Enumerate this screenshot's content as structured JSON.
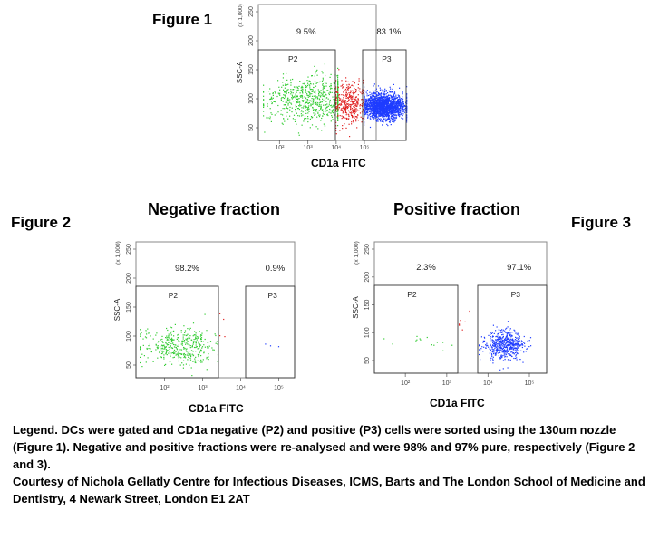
{
  "figures": {
    "fig1_label": "Figure 1",
    "fig2_label": "Figure 2",
    "fig3_label": "Figure 3",
    "negative_title": "Negative fraction",
    "positive_title": "Positive fraction"
  },
  "legend": {
    "line1": "Legend. DCs were gated and CD1a negative (P2) and positive (P3) cells were sorted using the 130um nozzle (Figure 1). Negative and positive fractions were re-analysed and were 98% and 97% pure, respectively (Figure 2 and 3).",
    "line2": "Courtesy of Nichola Gellatly Centre for Infectious Diseases, ICMS, Barts and The London School of Medicine and Dentistry, 4 Newark Street, London E1 2AT"
  },
  "colors": {
    "p2": "#33cc33",
    "ungated": "#e02020",
    "p3": "#1e3cff"
  },
  "chart_data": [
    {
      "type": "scatter",
      "name": "Figure 1",
      "xlabel": "CD1a FITC",
      "ylabel": "SSC-A",
      "y_multiplier_label": "(x 1,000)",
      "x_scale": "log",
      "x_ticks": [
        "10²",
        "10³",
        "10⁴",
        "10⁵"
      ],
      "y_ticks": [
        "250",
        "200",
        "150",
        "100",
        "50"
      ],
      "gates": [
        {
          "name": "P2",
          "percent": "9.5%"
        },
        {
          "name": "P3",
          "percent": "83.1%"
        }
      ],
      "populations": {
        "p2": 700,
        "ungated": 360,
        "p3": 1900
      }
    },
    {
      "type": "scatter",
      "name": "Figure 2",
      "xlabel": "CD1a FITC",
      "ylabel": "SSC-A",
      "y_multiplier_label": "(x 1,000)",
      "x_scale": "log",
      "x_ticks": [
        "10²",
        "10³",
        "10⁴",
        "10⁵"
      ],
      "y_ticks": [
        "250",
        "200",
        "150",
        "100",
        "50"
      ],
      "gates": [
        {
          "name": "P2",
          "percent": "98.2%"
        },
        {
          "name": "P3",
          "percent": "0.9%"
        }
      ],
      "populations": {
        "p2": 420,
        "ungated": 4,
        "p3": 3
      }
    },
    {
      "type": "scatter",
      "name": "Figure 3",
      "xlabel": "CD1a FITC",
      "ylabel": "SSC-A",
      "y_multiplier_label": "(x 1,000)",
      "x_scale": "log",
      "x_ticks": [
        "10²",
        "10³",
        "10⁴",
        "10⁵"
      ],
      "y_ticks": [
        "250",
        "200",
        "150",
        "100",
        "50"
      ],
      "gates": [
        {
          "name": "P2",
          "percent": "2.3%"
        },
        {
          "name": "P3",
          "percent": "97.1%"
        }
      ],
      "populations": {
        "p2": 14,
        "ungated": 6,
        "p3": 520
      }
    }
  ]
}
